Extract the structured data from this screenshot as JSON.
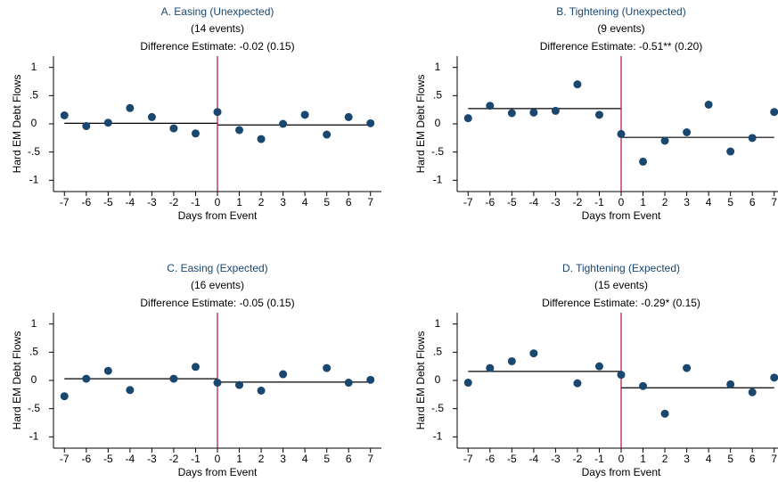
{
  "chart_data": [
    {
      "type": "scatter",
      "title": "A. Easing (Unexpected)",
      "subtitle": "(14 events)",
      "annotation": "Difference Estimate: -0.02 (0.15)",
      "xlabel": "Days from Event",
      "ylabel": "Hard EM Debt Flows",
      "x": [
        -7,
        -6,
        -5,
        -4,
        -3,
        -2,
        -1,
        0,
        1,
        2,
        3,
        4,
        5,
        6,
        7
      ],
      "series": [
        {
          "name": "Flows",
          "color": "#1a476f",
          "values": [
            0.15,
            -0.04,
            0.02,
            0.28,
            0.12,
            -0.08,
            -0.17,
            0.21,
            -0.11,
            -0.27,
            0.0,
            0.16,
            -0.19,
            0.12,
            0.01
          ]
        }
      ],
      "pre_event_mean": 0.01,
      "post_event_mean": -0.02,
      "event_day": 0,
      "event_line_color": "#b0103a",
      "xlim": [
        -7.5,
        7.5
      ],
      "ylim": [
        -1.2,
        1.2
      ],
      "xticks": [
        -7,
        -6,
        -5,
        -4,
        -3,
        -2,
        -1,
        0,
        1,
        2,
        3,
        4,
        5,
        6,
        7
      ],
      "yticks": [
        1,
        {
          "value": 0.5,
          "label": ".5"
        },
        0,
        {
          "value": -0.5,
          "label": "-.5"
        },
        -1
      ]
    },
    {
      "type": "scatter",
      "title": "B. Tightening (Unexpected)",
      "subtitle": "(9 events)",
      "annotation": "Difference Estimate: -0.51** (0.20)",
      "xlabel": "Days from Event",
      "ylabel": "Hard EM Debt Flows",
      "x": [
        -7,
        -6,
        -5,
        -4,
        -3,
        -2,
        -1,
        0,
        1,
        2,
        3,
        4,
        5,
        6,
        7
      ],
      "series": [
        {
          "name": "Flows",
          "color": "#1a476f",
          "values": [
            0.1,
            0.32,
            0.19,
            0.2,
            0.23,
            0.7,
            0.16,
            -0.18,
            -0.67,
            -0.3,
            -0.15,
            0.34,
            -0.49,
            -0.25,
            0.21
          ]
        }
      ],
      "pre_event_mean": 0.27,
      "post_event_mean": -0.24,
      "event_day": 0,
      "event_line_color": "#b0103a",
      "xlim": [
        -7.5,
        7.5
      ],
      "ylim": [
        -1.2,
        1.2
      ],
      "xticks": [
        -7,
        -6,
        -5,
        -4,
        -3,
        -2,
        -1,
        0,
        1,
        2,
        3,
        4,
        5,
        6,
        7
      ],
      "yticks": [
        1,
        {
          "value": 0.5,
          "label": ".5"
        },
        0,
        {
          "value": -0.5,
          "label": "-.5"
        },
        -1
      ]
    },
    {
      "type": "scatter",
      "title": "C. Easing (Expected)",
      "subtitle": "(16 events)",
      "annotation": "Difference Estimate: -0.05 (0.15)",
      "xlabel": "Days from Event",
      "ylabel": "Hard EM Debt Flows",
      "x": [
        -7,
        -6,
        -5,
        -4,
        -3,
        -2,
        -1,
        0,
        1,
        2,
        3,
        4,
        5,
        6,
        7
      ],
      "series": [
        {
          "name": "Flows",
          "color": "#1a476f",
          "values": [
            -0.28,
            0.03,
            0.17,
            -0.17,
            null,
            0.03,
            0.24,
            -0.04,
            -0.08,
            -0.18,
            0.11,
            null,
            0.22,
            -0.04,
            0.01
          ]
        }
      ],
      "pre_event_mean": 0.03,
      "post_event_mean": -0.03,
      "event_day": 0,
      "event_line_color": "#b0103a",
      "xlim": [
        -7.5,
        7.5
      ],
      "ylim": [
        -1.2,
        1.2
      ],
      "xticks": [
        -7,
        -6,
        -5,
        -4,
        -3,
        -2,
        -1,
        0,
        1,
        2,
        3,
        4,
        5,
        6,
        7
      ],
      "yticks": [
        1,
        {
          "value": 0.5,
          "label": ".5"
        },
        0,
        {
          "value": -0.5,
          "label": "-.5"
        },
        -1
      ]
    },
    {
      "type": "scatter",
      "title": "D. Tightening (Expected)",
      "subtitle": "(15 events)",
      "annotation": "Difference Estimate: -0.29* (0.15)",
      "xlabel": "Days from Event",
      "ylabel": "Hard EM Debt Flows",
      "x": [
        -7,
        -6,
        -5,
        -4,
        -3,
        -2,
        -1,
        0,
        1,
        2,
        3,
        4,
        5,
        6,
        7
      ],
      "series": [
        {
          "name": "Flows",
          "color": "#1a476f",
          "values": [
            -0.04,
            0.22,
            0.34,
            0.48,
            null,
            -0.05,
            0.25,
            0.1,
            -0.1,
            -0.59,
            0.22,
            null,
            -0.07,
            -0.21,
            0.05
          ]
        }
      ],
      "pre_event_mean": 0.16,
      "post_event_mean": -0.13,
      "event_day": 0,
      "event_line_color": "#b0103a",
      "xlim": [
        -7.5,
        7.5
      ],
      "ylim": [
        -1.2,
        1.2
      ],
      "xticks": [
        -7,
        -6,
        -5,
        -4,
        -3,
        -2,
        -1,
        0,
        1,
        2,
        3,
        4,
        5,
        6,
        7
      ],
      "yticks": [
        1,
        {
          "value": 0.5,
          "label": ".5"
        },
        0,
        {
          "value": -0.5,
          "label": "-.5"
        },
        -1
      ]
    }
  ]
}
